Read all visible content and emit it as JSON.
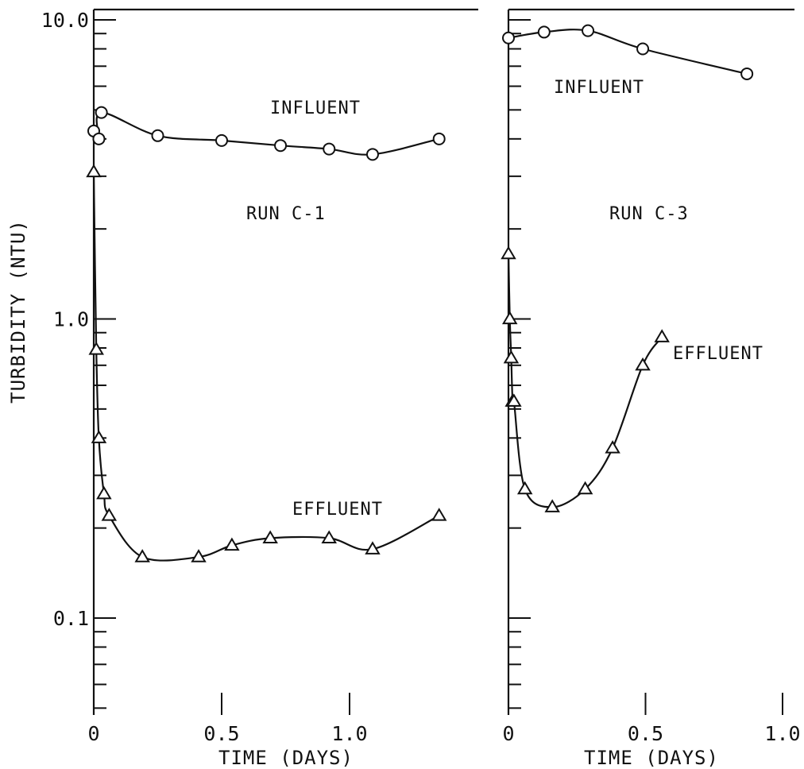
{
  "chart_data": [
    {
      "type": "line",
      "panel": "left",
      "title": "",
      "xlabel": "TIME (DAYS)",
      "ylabel": "TURBIDITY (NTU)",
      "yscale": "log",
      "xlim": [
        0,
        1.35
      ],
      "ylim": [
        0.05,
        11
      ],
      "x_ticks": [
        0,
        0.5,
        1.0
      ],
      "x_tick_labels": [
        "0",
        "0.5",
        "1.0"
      ],
      "y_ticks": [
        0.1,
        1.0,
        10.0
      ],
      "y_tick_labels": [
        "0.1",
        "1.0",
        "10.0"
      ],
      "grid": false,
      "annotations": [
        "INFLUENT",
        "RUN C-1",
        "EFFLUENT"
      ],
      "series": [
        {
          "name": "INFLUENT",
          "marker": "circle",
          "x": [
            0.0,
            0.02,
            0.03,
            0.25,
            0.5,
            0.73,
            0.92,
            1.09,
            1.35
          ],
          "y": [
            4.25,
            4.0,
            4.9,
            4.1,
            3.95,
            3.8,
            3.7,
            3.55,
            4.0
          ]
        },
        {
          "name": "EFFLUENT",
          "marker": "triangle",
          "x": [
            0.0,
            0.01,
            0.02,
            0.04,
            0.06,
            0.19,
            0.41,
            0.54,
            0.69,
            0.92,
            1.09,
            1.35
          ],
          "y": [
            3.1,
            0.79,
            0.4,
            0.26,
            0.22,
            0.16,
            0.16,
            0.175,
            0.185,
            0.185,
            0.17,
            0.22
          ]
        }
      ]
    },
    {
      "type": "line",
      "panel": "right",
      "title": "",
      "xlabel": "TIME (DAYS)",
      "ylabel": "",
      "yscale": "log",
      "xlim": [
        0,
        1.05
      ],
      "ylim": [
        0.05,
        11
      ],
      "x_ticks": [
        0,
        0.5,
        1.0
      ],
      "x_tick_labels": [
        "0",
        "0.5",
        "1.0"
      ],
      "grid": false,
      "annotations": [
        "INFLUENT",
        "RUN C-3",
        "EFFLUENT"
      ],
      "series": [
        {
          "name": "INFLUENT",
          "marker": "circle",
          "x": [
            0.0,
            0.13,
            0.29,
            0.49,
            0.87
          ],
          "y": [
            8.7,
            9.1,
            9.2,
            8.0,
            6.6
          ]
        },
        {
          "name": "EFFLUENT",
          "marker": "triangle",
          "x": [
            0.0,
            0.005,
            0.01,
            0.015,
            0.02,
            0.06,
            0.16,
            0.28,
            0.38,
            0.49,
            0.56
          ],
          "y": [
            1.65,
            1.0,
            0.74,
            0.53,
            0.53,
            0.27,
            0.235,
            0.27,
            0.37,
            0.7,
            0.87
          ]
        }
      ]
    }
  ]
}
